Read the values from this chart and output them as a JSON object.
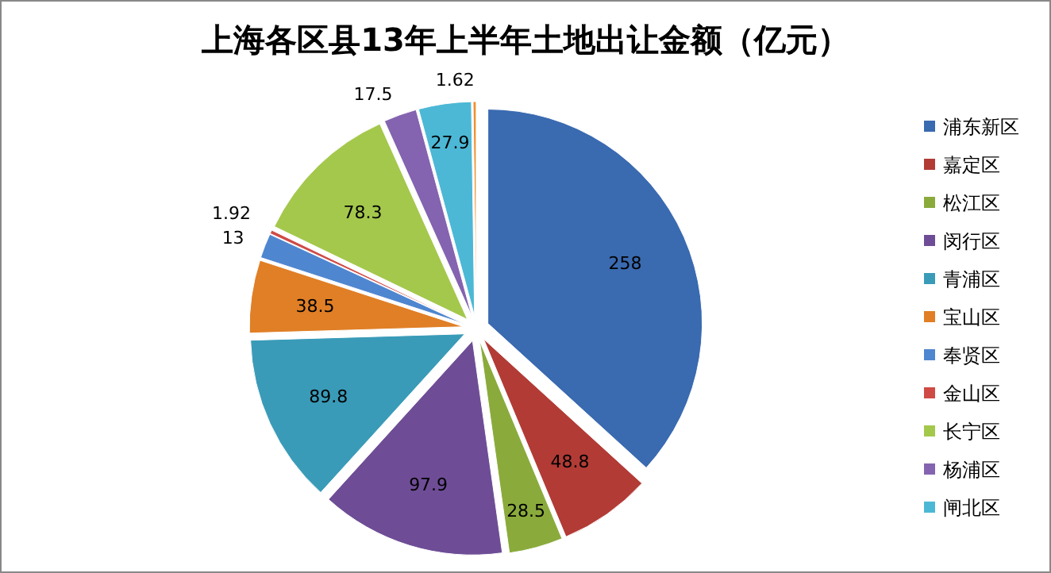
{
  "chart_data": {
    "type": "pie",
    "title": "上海各区县13年上半年土地出让金额（亿元）",
    "categories": [
      "浦东新区",
      "嘉定区",
      "松江区",
      "闵行区",
      "青浦区",
      "宝山区",
      "奉贤区",
      "金山区",
      "长宁区",
      "杨浦区",
      "闸北区",
      null
    ],
    "values": [
      258,
      48.8,
      28.5,
      97.9,
      89.8,
      38.5,
      13,
      1.92,
      78.3,
      17.5,
      27.9,
      1.62
    ],
    "colors": [
      "#3a6ab0",
      "#b23b36",
      "#8aab3c",
      "#6e4d96",
      "#3a9bb8",
      "#e07f26",
      "#4f86d0",
      "#d04a45",
      "#a4c84c",
      "#8463b0",
      "#4cb8d6",
      "#f09030"
    ],
    "data_labels": true,
    "legend": "right"
  }
}
